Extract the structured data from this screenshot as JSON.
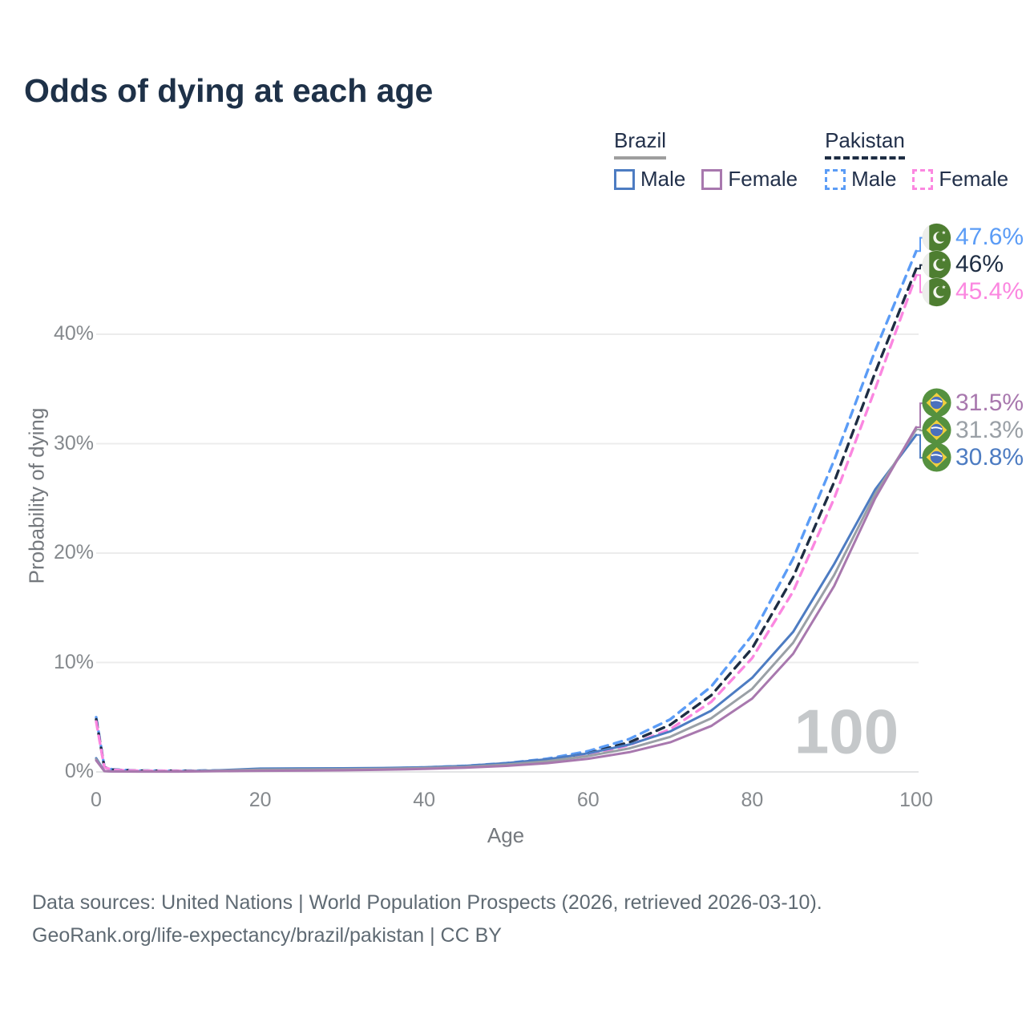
{
  "title": "Odds of dying at each age",
  "legend": {
    "groups": [
      {
        "country": "Brazil",
        "line_style": "solid",
        "underline_color": "#9e9e9e",
        "items": [
          {
            "label": "Male",
            "color": "#4d7cc2"
          },
          {
            "label": "Female",
            "color": "#a878ae"
          }
        ]
      },
      {
        "country": "Pakistan",
        "line_style": "dashed",
        "underline_color": "#1e2d43",
        "items": [
          {
            "label": "Male",
            "color": "#5b9cf6"
          },
          {
            "label": "Female",
            "color": "#fb87e0"
          }
        ]
      }
    ]
  },
  "chart_data": {
    "type": "line",
    "title": "Odds of dying at each age",
    "xlabel": "Age",
    "ylabel": "Probability of dying",
    "x_ticks": [
      0,
      20,
      40,
      60,
      80,
      100
    ],
    "y_tick_labels": [
      "0%",
      "10%",
      "20%",
      "30%",
      "40%"
    ],
    "y_tick_values": [
      0,
      10,
      20,
      30,
      40
    ],
    "xlim": [
      0,
      100
    ],
    "grid": "horizontal",
    "hover_age_watermark": "100",
    "x": [
      0,
      1,
      2,
      5,
      10,
      15,
      20,
      25,
      30,
      35,
      40,
      45,
      50,
      55,
      60,
      65,
      70,
      75,
      80,
      85,
      90,
      95,
      100
    ],
    "series": [
      {
        "name": "Pakistan Male",
        "flag": "pakistan",
        "dashed": true,
        "color": "#5b9cf6",
        "end_label": "47.6%",
        "values": [
          5.0,
          0.45,
          0.22,
          0.12,
          0.1,
          0.13,
          0.18,
          0.22,
          0.26,
          0.32,
          0.4,
          0.55,
          0.8,
          1.2,
          1.9,
          3.0,
          4.8,
          7.8,
          12.5,
          19.5,
          28.5,
          38.5,
          47.6
        ]
      },
      {
        "name": "Pakistan Both sexes",
        "flag": "pakistan",
        "dashed": true,
        "color": "#1e2d43",
        "end_label": "46%",
        "values": [
          4.8,
          0.42,
          0.2,
          0.11,
          0.09,
          0.11,
          0.15,
          0.19,
          0.23,
          0.28,
          0.36,
          0.5,
          0.72,
          1.08,
          1.7,
          2.7,
          4.3,
          7.0,
          11.3,
          17.8,
          26.5,
          36.5,
          46.0
        ]
      },
      {
        "name": "Pakistan Female",
        "flag": "pakistan",
        "dashed": true,
        "color": "#fb87e0",
        "end_label": "45.4%",
        "values": [
          4.6,
          0.4,
          0.19,
          0.1,
          0.08,
          0.1,
          0.13,
          0.16,
          0.2,
          0.25,
          0.32,
          0.45,
          0.65,
          1.0,
          1.55,
          2.45,
          3.9,
          6.4,
          10.4,
          16.5,
          25.0,
          35.0,
          45.4
        ]
      },
      {
        "name": "Brazil Male",
        "flag": "brazil",
        "dashed": false,
        "color": "#4d7cc2",
        "end_label": "30.8%",
        "values": [
          1.25,
          0.08,
          0.05,
          0.04,
          0.04,
          0.15,
          0.3,
          0.32,
          0.33,
          0.36,
          0.42,
          0.55,
          0.8,
          1.15,
          1.7,
          2.5,
          3.7,
          5.6,
          8.6,
          12.8,
          19.0,
          25.8,
          30.8
        ]
      },
      {
        "name": "Brazil Both sexes",
        "flag": "brazil",
        "dashed": false,
        "color": "#9aa0a6",
        "end_label": "31.3%",
        "values": [
          1.15,
          0.075,
          0.045,
          0.035,
          0.035,
          0.11,
          0.2,
          0.22,
          0.24,
          0.28,
          0.35,
          0.46,
          0.67,
          0.97,
          1.45,
          2.15,
          3.2,
          4.9,
          7.6,
          11.8,
          18.0,
          25.4,
          31.3
        ]
      },
      {
        "name": "Brazil Female",
        "flag": "brazil",
        "dashed": false,
        "color": "#a878ae",
        "end_label": "31.5%",
        "values": [
          1.05,
          0.07,
          0.04,
          0.03,
          0.03,
          0.07,
          0.1,
          0.12,
          0.15,
          0.2,
          0.27,
          0.38,
          0.55,
          0.8,
          1.2,
          1.8,
          2.7,
          4.2,
          6.7,
          10.8,
          17.0,
          25.0,
          31.5
        ]
      }
    ]
  },
  "footer": {
    "line1": "Data sources: United Nations | World Population Prospects (2026, retrieved 2026-03-10).",
    "line2": "GeoRank.org/life-expectancy/brazil/pakistan | CC BY"
  }
}
